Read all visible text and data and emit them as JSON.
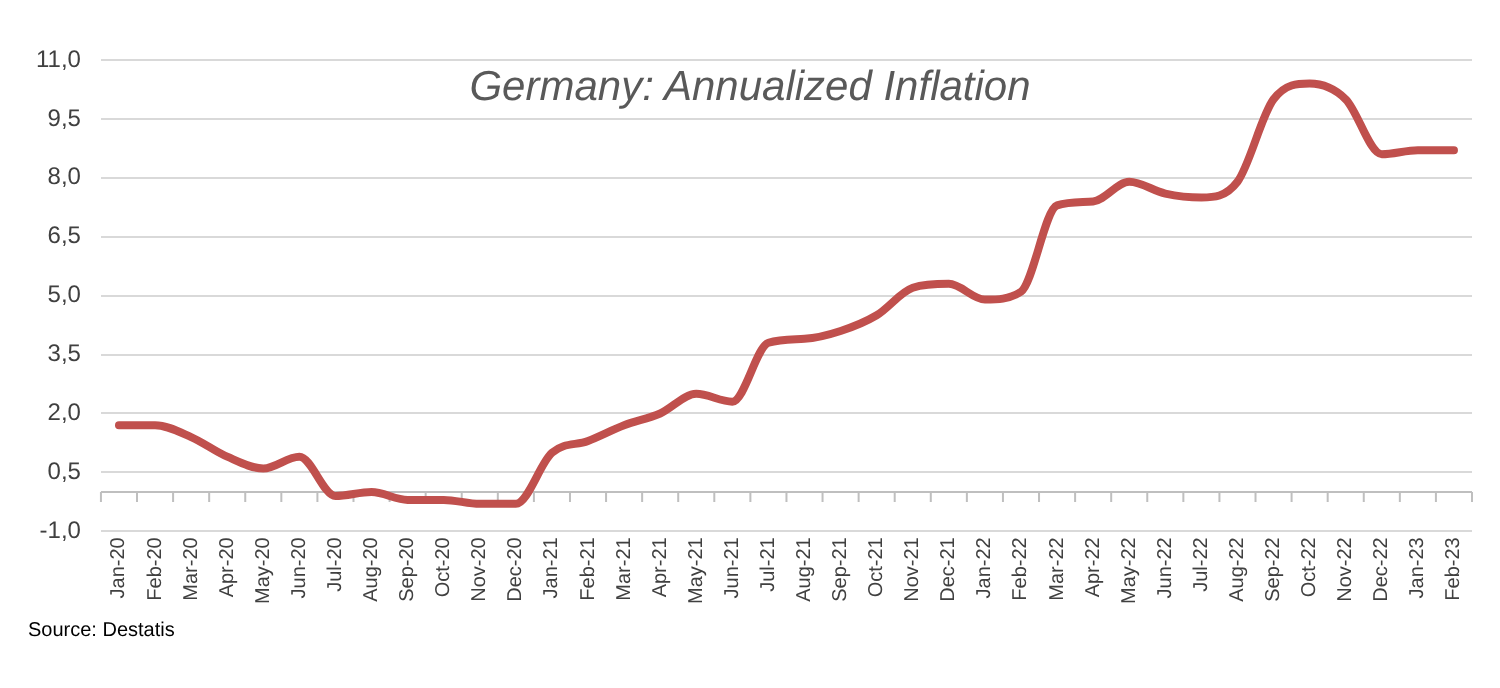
{
  "chart_data": {
    "type": "line",
    "title": "Germany: Annualized Inflation",
    "annotations": [
      "Source: Destatis"
    ],
    "categories": [
      "Jan-20",
      "Feb-20",
      "Mar-20",
      "Apr-20",
      "May-20",
      "Jun-20",
      "Jul-20",
      "Aug-20",
      "Sep-20",
      "Oct-20",
      "Nov-20",
      "Dec-20",
      "Jan-21",
      "Feb-21",
      "Mar-21",
      "Apr-21",
      "May-21",
      "Jun-21",
      "Jul-21",
      "Aug-21",
      "Sep-21",
      "Oct-21",
      "Nov-21",
      "Dec-21",
      "Jan-22",
      "Feb-22",
      "Mar-22",
      "Apr-22",
      "May-22",
      "Jun-22",
      "Jul-22",
      "Aug-22",
      "Sep-22",
      "Oct-22",
      "Nov-22",
      "Dec-22",
      "Jan-23",
      "Feb-23"
    ],
    "series": [
      {
        "color": "#c0504d",
        "values": [
          1.7,
          1.7,
          1.4,
          0.9,
          0.6,
          0.9,
          -0.1,
          0.0,
          -0.2,
          -0.2,
          -0.3,
          -0.3,
          1.0,
          1.3,
          1.7,
          2.0,
          2.5,
          2.3,
          3.8,
          3.9,
          4.1,
          4.5,
          5.2,
          5.3,
          4.9,
          5.1,
          7.3,
          7.4,
          7.9,
          7.6,
          7.5,
          7.9,
          10.0,
          10.4,
          10.0,
          8.6,
          8.7,
          8.7
        ]
      }
    ],
    "ylim": [
      -1,
      11
    ],
    "yticks": [
      {
        "value": -1,
        "label": "-1,0"
      },
      {
        "value": 0.5,
        "label": "0,5"
      },
      {
        "value": 2,
        "label": "2,0"
      },
      {
        "value": 3.5,
        "label": "3,5"
      },
      {
        "value": 5,
        "label": "5,0"
      },
      {
        "value": 6.5,
        "label": "6,5"
      },
      {
        "value": 8,
        "label": "8,0"
      },
      {
        "value": 9.5,
        "label": "9,5"
      },
      {
        "value": 11,
        "label": "11,0"
      }
    ],
    "grid": "y",
    "legend": false,
    "marker": "none",
    "line_style": "solid"
  }
}
